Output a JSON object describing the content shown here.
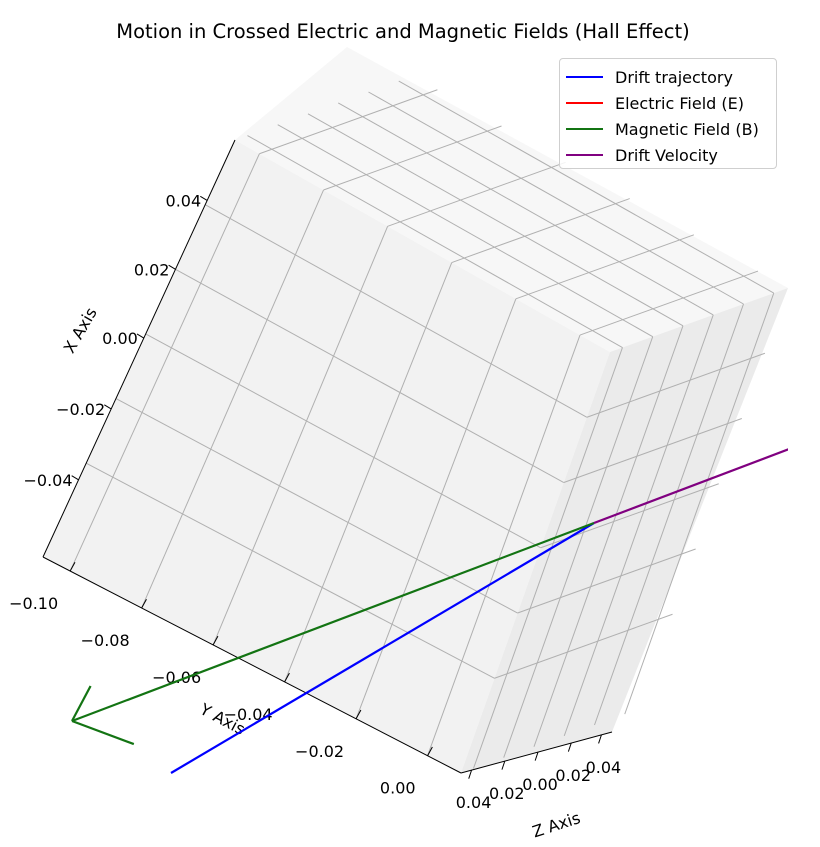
{
  "chart_data": {
    "type": "line",
    "projection": "3d",
    "title": "Motion in Crossed Electric and Magnetic Fields (Hall Effect)",
    "xlabel": "X Axis",
    "ylabel": "Y Axis",
    "zlabel": "Z Axis",
    "x_ticks": [
      "0.04",
      "0.02",
      "0.00",
      "−0.02",
      "−0.04"
    ],
    "y_ticks": [
      "−0.10",
      "−0.08",
      "−0.06",
      "−0.04",
      "−0.02",
      "0.00"
    ],
    "z_ticks": [
      "0.04",
      "0.02",
      "0.00",
      "0.02",
      "0.04"
    ],
    "xlim": [
      -0.05,
      0.05
    ],
    "ylim": [
      -0.105,
      0.005
    ],
    "zlim": [
      -0.05,
      0.05
    ],
    "grid": true,
    "legend_position": "top-right",
    "series": [
      {
        "name": "Drift trajectory",
        "color": "#0000ff",
        "kind": "line",
        "x": [
          0.0,
          0.0
        ],
        "y": [
          -0.1,
          0.0
        ],
        "z": [
          0.0,
          0.0
        ]
      },
      {
        "name": "Electric Field (E)",
        "color": "#ff0000",
        "kind": "arrow",
        "x": [
          0.0,
          0.0
        ],
        "y": [
          0.0,
          0.0
        ],
        "z": [
          0.0,
          0.0
        ]
      },
      {
        "name": "Magnetic Field (B)",
        "color": "#137413",
        "kind": "arrow",
        "x": [
          0.0,
          0.0
        ],
        "y": [
          0.0,
          0.0
        ],
        "z": [
          0.0,
          1.0
        ]
      },
      {
        "name": "Drift Velocity",
        "color": "#800080",
        "kind": "arrow",
        "x": [
          0.0,
          0.0
        ],
        "y": [
          0.0,
          0.0
        ],
        "z": [
          0.0,
          -1.0
        ]
      }
    ]
  }
}
